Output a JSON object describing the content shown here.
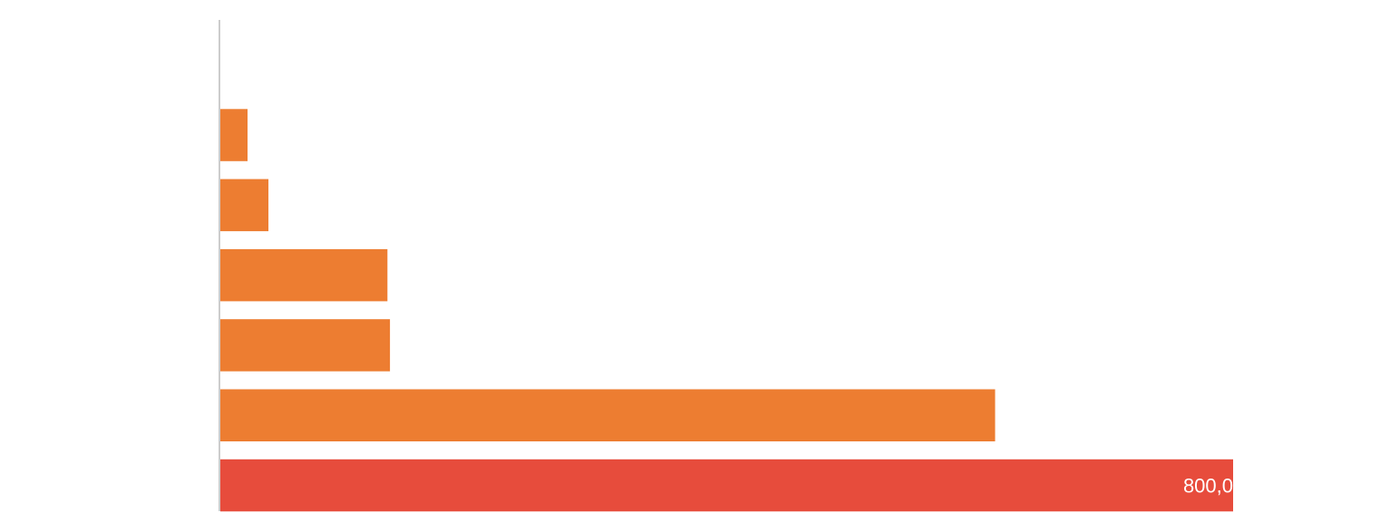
{
  "chart_data": {
    "type": "barh",
    "categories": [
      null,
      null,
      null,
      null,
      null,
      null,
      null
    ],
    "values": [
      0,
      21.5,
      38,
      132,
      134,
      612,
      800
    ],
    "value_labels": [
      null,
      null,
      null,
      null,
      null,
      null,
      "800,0"
    ],
    "colors": [
      "#ed7d31",
      "#ed7d31",
      "#ed7d31",
      "#ed7d31",
      "#ed7d31",
      "#ed7d31",
      "#e74c3c"
    ],
    "xlim": [
      0,
      800
    ]
  }
}
